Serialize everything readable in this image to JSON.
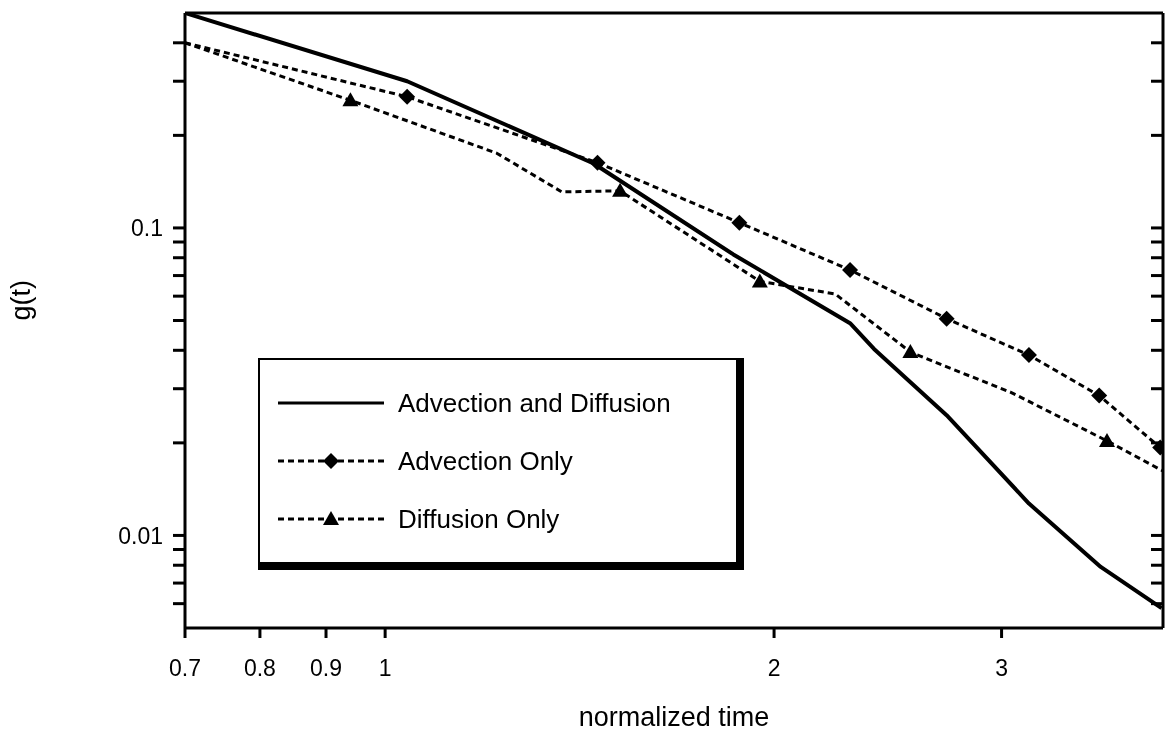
{
  "chart_data": {
    "type": "line",
    "xlabel": "normalized time",
    "ylabel": "g(t)",
    "log": "xy",
    "grid": false,
    "legend": "bottom left",
    "xlim": [
      0.7,
      4
    ],
    "xticks": [
      0.7,
      0.8,
      0.9,
      1,
      2,
      3
    ],
    "ylim": [
      0.005,
      0.5
    ],
    "yticks": [
      {
        "value": 0.006,
        "label": null
      },
      {
        "value": 0.007,
        "label": null
      },
      {
        "value": 0.008,
        "label": null
      },
      {
        "value": 0.009,
        "label": null
      },
      0.01,
      {
        "value": 0.02,
        "label": null
      },
      {
        "value": 0.03,
        "label": null
      },
      {
        "value": 0.04,
        "label": null
      },
      {
        "value": 0.05,
        "label": null
      },
      {
        "value": 0.06,
        "label": null
      },
      {
        "value": 0.07,
        "label": null
      },
      {
        "value": 0.08,
        "label": null
      },
      {
        "value": 0.09,
        "label": null
      },
      0.1,
      {
        "value": 0.2,
        "label": null
      },
      {
        "value": 0.3,
        "label": null
      },
      {
        "value": 0.4,
        "label": null
      }
    ],
    "series": [
      {
        "type": "line",
        "name": "Advection and Diffusion",
        "color": "#000000",
        "line_style": "solid",
        "x": [
          0.7,
          1.04,
          1.45,
          1.86,
          2.29,
          2.39,
          2.72,
          3.15,
          3.58,
          3.99
        ],
        "values": [
          0.5,
          0.3,
          0.162,
          0.082,
          0.049,
          0.0404,
          0.0246,
          0.0127,
          0.0079,
          0.0058
        ]
      },
      {
        "type": "line",
        "color": "#000000",
        "line_style": "dashed",
        "x": [
          0.7,
          1.04,
          1.46,
          1.88,
          2.29,
          2.72,
          3.15,
          3.57,
          3.98
        ],
        "values": [
          0.4,
          0.267,
          0.163,
          0.104,
          0.073,
          0.0507,
          0.0386,
          0.0285,
          0.0193
        ]
      },
      {
        "type": "scatter",
        "name": "Advection Only",
        "color": "#000000",
        "marker": "diamond",
        "line_style": "dashed",
        "x": [
          1.04,
          1.46,
          1.88,
          2.29,
          2.72,
          3.15,
          3.57,
          3.98
        ],
        "values": [
          0.267,
          0.163,
          0.104,
          0.073,
          0.0507,
          0.0386,
          0.0285,
          0.0193
        ]
      },
      {
        "type": "line",
        "color": "#000000",
        "line_style": "dashed",
        "x": [
          0.7,
          0.94,
          1.22,
          1.37,
          1.52,
          1.95,
          2.23,
          2.55,
          2.7,
          3.05,
          3.62,
          4.0
        ],
        "values": [
          0.4,
          0.26,
          0.175,
          0.131,
          0.132,
          0.067,
          0.061,
          0.0395,
          0.0358,
          0.0292,
          0.0203,
          0.0162
        ]
      },
      {
        "type": "scatter",
        "name": "Diffusion Only",
        "color": "#000000",
        "marker": "triangle",
        "line_style": "dashed",
        "x": [
          0.94,
          1.52,
          1.95,
          2.55,
          3.62
        ],
        "values": [
          0.26,
          0.132,
          0.067,
          0.0395,
          0.0203
        ]
      }
    ]
  }
}
